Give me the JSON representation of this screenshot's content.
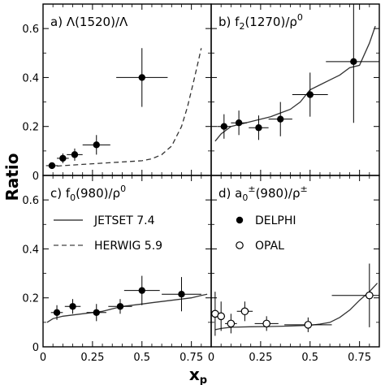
{
  "figure": {
    "ylabel": "Ratio",
    "xlabel_main": "x",
    "xlabel_sub": "p"
  },
  "legend": {
    "jetset": "JETSET 7.4",
    "herwig": "HERWIG 5.9",
    "delphi": "DELPHI",
    "opal": "OPAL"
  },
  "chart_data": [
    {
      "type": "scatter",
      "panel": "a",
      "label_prefix": "a)",
      "label_main": "Λ(1520)/Λ",
      "xlim": [
        0,
        0.85
      ],
      "ylim": [
        0,
        0.7
      ],
      "xticks": [
        0,
        0.25,
        0.5,
        0.75
      ],
      "xtick_labels": [
        "0",
        "0.25",
        "0.5",
        "0.75"
      ],
      "yticks": [
        0,
        0.2,
        0.4,
        0.6
      ],
      "ytick_labels": [
        "0",
        "0.2",
        "0.4",
        "0.6"
      ],
      "show_xtick_labels": false,
      "show_ytick_labels": true,
      "series": [
        {
          "name": "DELPHI",
          "marker": "filled",
          "points": [
            {
              "x": 0.045,
              "y": 0.04,
              "xerr": 0.03,
              "yerr": 0.01
            },
            {
              "x": 0.1,
              "y": 0.07,
              "xerr": 0.03,
              "yerr": 0.02
            },
            {
              "x": 0.16,
              "y": 0.085,
              "xerr": 0.04,
              "yerr": 0.025
            },
            {
              "x": 0.27,
              "y": 0.125,
              "xerr": 0.07,
              "yerr": 0.04
            },
            {
              "x": 0.5,
              "y": 0.4,
              "xerr": 0.13,
              "yerr": 0.12
            }
          ]
        }
      ],
      "curves": [
        {
          "name": "HERWIG 5.9",
          "style": "dashed",
          "points": [
            [
              0.03,
              0.035
            ],
            [
              0.1,
              0.04
            ],
            [
              0.2,
              0.045
            ],
            [
              0.3,
              0.05
            ],
            [
              0.4,
              0.055
            ],
            [
              0.5,
              0.06
            ],
            [
              0.55,
              0.068
            ],
            [
              0.6,
              0.085
            ],
            [
              0.65,
              0.12
            ],
            [
              0.7,
              0.2
            ],
            [
              0.73,
              0.28
            ],
            [
              0.76,
              0.38
            ],
            [
              0.78,
              0.45
            ],
            [
              0.8,
              0.52
            ]
          ]
        }
      ]
    },
    {
      "type": "scatter",
      "panel": "b",
      "label_prefix": "b)",
      "label_main": "f",
      "label_sub": "2",
      "label_rest": "(1270)/ρ",
      "label_sup": "0",
      "xlim": [
        0,
        0.85
      ],
      "ylim": [
        0,
        0.7
      ],
      "xticks": [
        0,
        0.25,
        0.5,
        0.75
      ],
      "xtick_labels": [
        "0",
        "0.25",
        "0.5",
        "0.75"
      ],
      "yticks": [
        0,
        0.2,
        0.4,
        0.6
      ],
      "ytick_labels": [
        "0",
        "0.2",
        "0.4",
        "0.6"
      ],
      "show_xtick_labels": false,
      "show_ytick_labels": false,
      "series": [
        {
          "name": "DELPHI",
          "marker": "filled",
          "points": [
            {
              "x": 0.065,
              "y": 0.2,
              "xerr": 0.035,
              "yerr": 0.05
            },
            {
              "x": 0.14,
              "y": 0.215,
              "xerr": 0.04,
              "yerr": 0.05
            },
            {
              "x": 0.24,
              "y": 0.195,
              "xerr": 0.05,
              "yerr": 0.05
            },
            {
              "x": 0.35,
              "y": 0.23,
              "xerr": 0.06,
              "yerr": 0.07
            },
            {
              "x": 0.5,
              "y": 0.33,
              "xerr": 0.09,
              "yerr": 0.09
            },
            {
              "x": 0.72,
              "y": 0.465,
              "xerr": 0.14,
              "yerr": 0.25
            }
          ]
        }
      ],
      "curves": [
        {
          "name": "JETSET 7.4",
          "style": "solid",
          "points": [
            [
              0.02,
              0.14
            ],
            [
              0.05,
              0.17
            ],
            [
              0.1,
              0.2
            ],
            [
              0.15,
              0.21
            ],
            [
              0.2,
              0.22
            ],
            [
              0.25,
              0.23
            ],
            [
              0.3,
              0.24
            ],
            [
              0.35,
              0.255
            ],
            [
              0.4,
              0.27
            ],
            [
              0.45,
              0.3
            ],
            [
              0.5,
              0.35
            ],
            [
              0.55,
              0.37
            ],
            [
              0.6,
              0.39
            ],
            [
              0.65,
              0.41
            ],
            [
              0.7,
              0.44
            ],
            [
              0.75,
              0.45
            ],
            [
              0.8,
              0.54
            ],
            [
              0.83,
              0.61
            ]
          ]
        }
      ]
    },
    {
      "type": "scatter",
      "panel": "c",
      "label_prefix": "c)",
      "label_main": "f",
      "label_sub": "0",
      "label_rest": "(980)/ρ",
      "label_sup": "0",
      "xlim": [
        0,
        0.85
      ],
      "ylim": [
        0,
        0.7
      ],
      "xticks": [
        0,
        0.25,
        0.5,
        0.75
      ],
      "xtick_labels": [
        "0",
        "0.25",
        "0.5",
        "0.75"
      ],
      "yticks": [
        0,
        0.2,
        0.4,
        0.6
      ],
      "ytick_labels": [
        "0",
        "0.2",
        "0.4",
        "0.6"
      ],
      "show_xtick_labels": true,
      "show_ytick_labels": true,
      "series": [
        {
          "name": "DELPHI",
          "marker": "filled",
          "points": [
            {
              "x": 0.07,
              "y": 0.14,
              "xerr": 0.03,
              "yerr": 0.03
            },
            {
              "x": 0.15,
              "y": 0.165,
              "xerr": 0.04,
              "yerr": 0.03
            },
            {
              "x": 0.27,
              "y": 0.14,
              "xerr": 0.05,
              "yerr": 0.035
            },
            {
              "x": 0.39,
              "y": 0.165,
              "xerr": 0.06,
              "yerr": 0.03
            },
            {
              "x": 0.5,
              "y": 0.23,
              "xerr": 0.09,
              "yerr": 0.06
            },
            {
              "x": 0.7,
              "y": 0.215,
              "xerr": 0.1,
              "yerr": 0.07
            }
          ]
        }
      ],
      "curves": [
        {
          "name": "JETSET 7.4",
          "style": "solid",
          "points": [
            [
              0.02,
              0.1
            ],
            [
              0.05,
              0.115
            ],
            [
              0.1,
              0.125
            ],
            [
              0.15,
              0.13
            ],
            [
              0.2,
              0.135
            ],
            [
              0.25,
              0.14
            ],
            [
              0.3,
              0.145
            ],
            [
              0.35,
              0.155
            ],
            [
              0.4,
              0.165
            ],
            [
              0.45,
              0.17
            ],
            [
              0.5,
              0.175
            ],
            [
              0.55,
              0.18
            ],
            [
              0.6,
              0.185
            ],
            [
              0.65,
              0.19
            ],
            [
              0.7,
              0.195
            ],
            [
              0.75,
              0.2
            ],
            [
              0.8,
              0.21
            ],
            [
              0.83,
              0.215
            ]
          ]
        }
      ]
    },
    {
      "type": "scatter",
      "panel": "d",
      "label_prefix": "d)",
      "label_main": "a",
      "label_sub": "0",
      "label_sup1": "±",
      "label_rest": "(980)/ρ",
      "label_sup": "±",
      "xlim": [
        0,
        0.85
      ],
      "ylim": [
        0,
        0.7
      ],
      "xticks": [
        0,
        0.25,
        0.5,
        0.75
      ],
      "xtick_labels": [
        "0",
        "0.25",
        "0.5",
        "0.75"
      ],
      "yticks": [
        0,
        0.2,
        0.4,
        0.6
      ],
      "ytick_labels": [
        "0",
        "0.2",
        "0.4",
        "0.6"
      ],
      "show_xtick_labels": true,
      "show_ytick_labels": false,
      "series": [
        {
          "name": "OPAL",
          "marker": "open",
          "points": [
            {
              "x": 0.02,
              "y": 0.135,
              "xerr": 0.02,
              "yerr": 0.09
            },
            {
              "x": 0.05,
              "y": 0.125,
              "xerr": 0.02,
              "yerr": 0.06
            },
            {
              "x": 0.1,
              "y": 0.095,
              "xerr": 0.03,
              "yerr": 0.04
            },
            {
              "x": 0.17,
              "y": 0.145,
              "xerr": 0.04,
              "yerr": 0.04
            },
            {
              "x": 0.28,
              "y": 0.095,
              "xerr": 0.06,
              "yerr": 0.03
            },
            {
              "x": 0.49,
              "y": 0.09,
              "xerr": 0.12,
              "yerr": 0.03
            },
            {
              "x": 0.8,
              "y": 0.21,
              "xerr": 0.19,
              "yerr": 0.13
            }
          ]
        }
      ],
      "curves": [
        {
          "name": "JETSET 7.4",
          "style": "solid",
          "points": [
            [
              0.02,
              0.07
            ],
            [
              0.05,
              0.075
            ],
            [
              0.1,
              0.08
            ],
            [
              0.2,
              0.082
            ],
            [
              0.3,
              0.083
            ],
            [
              0.4,
              0.085
            ],
            [
              0.5,
              0.088
            ],
            [
              0.55,
              0.093
            ],
            [
              0.6,
              0.1
            ],
            [
              0.65,
              0.12
            ],
            [
              0.7,
              0.15
            ],
            [
              0.75,
              0.19
            ],
            [
              0.8,
              0.225
            ],
            [
              0.84,
              0.26
            ]
          ]
        }
      ]
    }
  ]
}
